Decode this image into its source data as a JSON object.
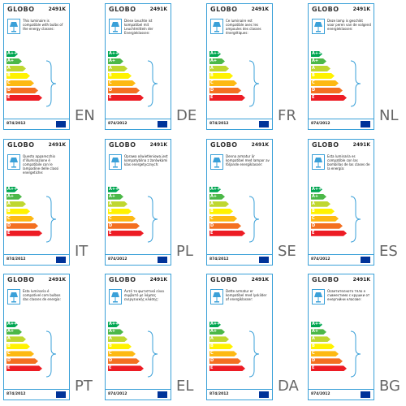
{
  "label": {
    "brand": "GLOBO",
    "model": "2491K",
    "regulation": "874/2012",
    "classes": [
      "A++",
      "A+",
      "A",
      "B",
      "C",
      "D",
      "E"
    ]
  },
  "labels": [
    {
      "lang": "EN",
      "text": "This luminaire is compatible with bulbs of the energy classes:"
    },
    {
      "lang": "DE",
      "text": "Diese Leuchte ist kompatibel mit Leuchtmitteln der Energieklassen:"
    },
    {
      "lang": "FR",
      "text": "Ce luminaire est compatible avec les ampoules des classes énergétiques:"
    },
    {
      "lang": "NL",
      "text": "Deze lamp is geschikt voor peren van de volgend energieklassen:"
    },
    {
      "lang": "IT",
      "text": "Questo apparecchio d'illuminazione è compatibile con le lampadine delle classi energetiche:"
    },
    {
      "lang": "PL",
      "text": "Oprawa oświetleniowa jest kompatybilna z żarówkami klas energetycznych:"
    },
    {
      "lang": "SE",
      "text": "Denna armatur är kompatibel med lampor av följande energiklasser:"
    },
    {
      "lang": "ES",
      "text": "Esta luminaria es compatible con las bombillas de las clases de la energía:"
    },
    {
      "lang": "PT",
      "text": "Esta luminaria é compativel com bulbos das classes de energia:"
    },
    {
      "lang": "EL",
      "text": "Αυτό το φωτιστικό είναι συμβατό με λάμπες ενεργειακής κλάσης:"
    },
    {
      "lang": "DA",
      "text": "Dette armatur er kompatibel med lyskilder af energiklasser:"
    },
    {
      "lang": "BG",
      "text": "Осветителното тяло е съвместимо с крушки от енергийни класове:"
    }
  ]
}
